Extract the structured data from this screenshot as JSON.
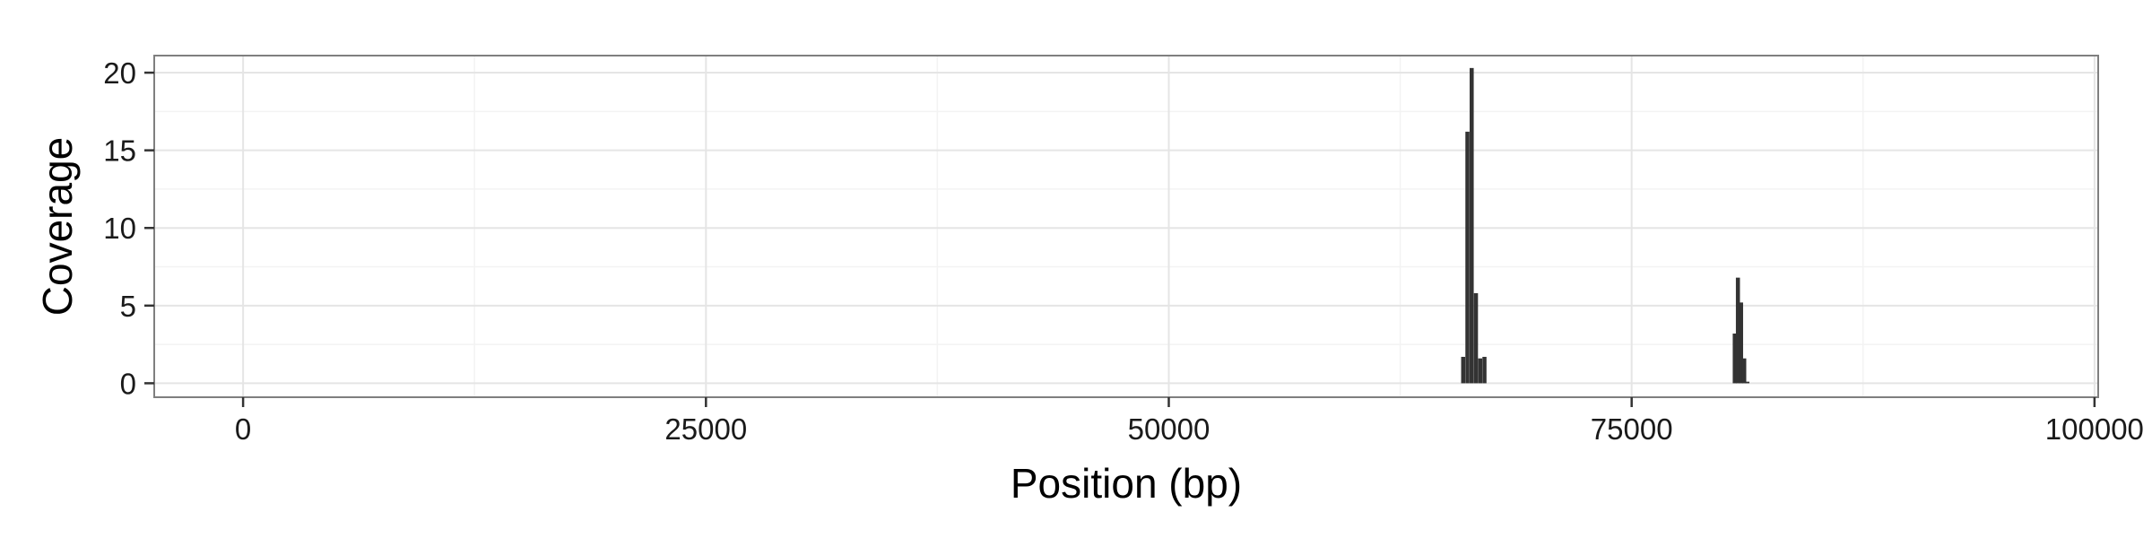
{
  "chart_data": {
    "type": "bar",
    "title": "",
    "xlabel": "Position (bp)",
    "ylabel": "Coverage",
    "xlim": [
      -4800,
      100200
    ],
    "ylim": [
      -0.9,
      21.1
    ],
    "x_ticks": [
      0,
      25000,
      50000,
      75000,
      100000
    ],
    "x_tick_labels": [
      "0",
      "25000",
      "50000",
      "75000",
      "100000"
    ],
    "x_minor_ticks": [
      12500,
      37500,
      62500,
      87500
    ],
    "y_ticks": [
      0,
      5,
      10,
      15,
      20
    ],
    "y_tick_labels": [
      "0",
      "5",
      "10",
      "15",
      "20"
    ],
    "y_minor_ticks": [
      2.5,
      7.5,
      12.5,
      17.5
    ],
    "grid": true,
    "bar_width": 220,
    "x": [
      65900,
      66130,
      66360,
      66590,
      66820,
      67050,
      80570,
      80740,
      80910,
      81080,
      81250
    ],
    "values": [
      1.7,
      16.2,
      20.3,
      5.8,
      1.6,
      1.7,
      3.2,
      6.8,
      5.2,
      1.6,
      0.1
    ],
    "colors": {
      "bar": "#333333",
      "panel_border": "#7f7f7f",
      "grid_major": "#e5e5e5",
      "grid_minor": "#f3f3f3",
      "tick": "#333333"
    }
  }
}
